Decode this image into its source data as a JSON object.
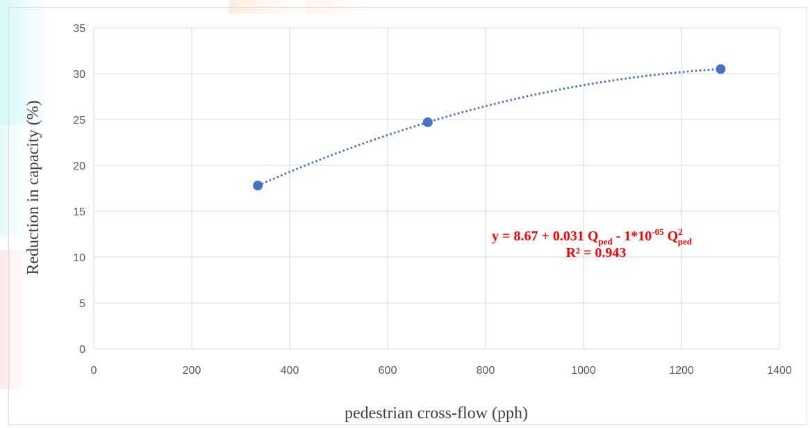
{
  "chart_data": {
    "type": "scatter",
    "xlabel": "pedestrian cross-flow (pph)",
    "ylabel": "Reduction in capacity (%)",
    "xlim": [
      0,
      1400
    ],
    "ylim": [
      0,
      35
    ],
    "x_ticks": [
      0,
      200,
      400,
      600,
      800,
      1000,
      1200,
      1400
    ],
    "y_ticks": [
      0,
      5,
      10,
      15,
      20,
      25,
      30,
      35
    ],
    "grid": true,
    "legend": "none",
    "series": [
      {
        "points": [
          {
            "x": 335,
            "y": 17.8
          },
          {
            "x": 682,
            "y": 24.7
          },
          {
            "x": 1280,
            "y": 30.5
          }
        ]
      }
    ],
    "trendline": {
      "type": "polynomial-2",
      "style": "dotted",
      "intercept": 8.67,
      "linear_coef": 0.031,
      "quadratic_coef_label": "1*10",
      "quadratic_exponent": "-05",
      "x_range": [
        335,
        1280
      ]
    },
    "annotation": {
      "eq_prefix": "y = 8.67 + 0.031 Q",
      "sub1": "ped",
      "eq_mid": " - 1*10",
      "sup1": "-05",
      "eq_q": " Q",
      "sup2": "2",
      "sub2": "ped",
      "r2": "R² = 0.943"
    },
    "colors": {
      "marker": "#4472c4",
      "trendline": "#4472c4",
      "annotation": "#ff0000",
      "grid": "#d9d9d9"
    }
  }
}
